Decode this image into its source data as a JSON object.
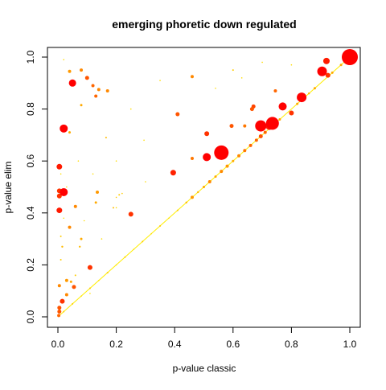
{
  "chart_data": {
    "type": "scatter",
    "title": "emerging phoretic down regulated",
    "xlabel": "p-value classic",
    "ylabel": "p-value elim",
    "xlim": [
      0,
      1
    ],
    "ylim": [
      0,
      1
    ],
    "xticks": [
      "0.0",
      "0.2",
      "0.4",
      "0.6",
      "0.8",
      "1.0"
    ],
    "yticks": [
      "0.0",
      "0.2",
      "0.4",
      "0.6",
      "0.8",
      "1.0"
    ],
    "grid": false,
    "legend": "none",
    "colors": {
      "high": "#ff0000",
      "mid": "#ff6600",
      "low": "#ffd700",
      "faint": "#ffee00"
    },
    "points": [
      {
        "x": 1.0,
        "y": 1.0,
        "r": 10,
        "c": "#ff0000"
      },
      {
        "x": 0.92,
        "y": 0.985,
        "r": 4,
        "c": "#ff1a00"
      },
      {
        "x": 0.905,
        "y": 0.945,
        "r": 6,
        "c": "#ff0000"
      },
      {
        "x": 0.925,
        "y": 0.93,
        "r": 3,
        "c": "#ff3300"
      },
      {
        "x": 0.835,
        "y": 0.845,
        "r": 6,
        "c": "#ff0000"
      },
      {
        "x": 0.8,
        "y": 0.785,
        "r": 3,
        "c": "#ff3300"
      },
      {
        "x": 0.77,
        "y": 0.81,
        "r": 5,
        "c": "#ff0000"
      },
      {
        "x": 0.745,
        "y": 0.87,
        "r": 2,
        "c": "#ff6600"
      },
      {
        "x": 0.735,
        "y": 0.745,
        "r": 8,
        "c": "#ff0000"
      },
      {
        "x": 0.725,
        "y": 0.735,
        "r": 5,
        "c": "#ff1a00"
      },
      {
        "x": 0.695,
        "y": 0.735,
        "r": 7,
        "c": "#ff0000"
      },
      {
        "x": 0.67,
        "y": 0.81,
        "r": 2.5,
        "c": "#ff4400"
      },
      {
        "x": 0.665,
        "y": 0.8,
        "r": 2.5,
        "c": "#ff5500"
      },
      {
        "x": 0.64,
        "y": 0.735,
        "r": 2,
        "c": "#ff7700"
      },
      {
        "x": 0.6,
        "y": 0.95,
        "r": 1,
        "c": "#ffcc00"
      },
      {
        "x": 0.63,
        "y": 0.92,
        "r": 0.8,
        "c": "#ffdd00"
      },
      {
        "x": 0.56,
        "y": 0.632,
        "r": 9,
        "c": "#ff0000"
      },
      {
        "x": 0.51,
        "y": 0.615,
        "r": 5,
        "c": "#ff0000"
      },
      {
        "x": 0.51,
        "y": 0.705,
        "r": 3,
        "c": "#ff3300"
      },
      {
        "x": 0.595,
        "y": 0.735,
        "r": 2.5,
        "c": "#ff5500"
      },
      {
        "x": 0.46,
        "y": 0.925,
        "r": 2,
        "c": "#ff8800"
      },
      {
        "x": 0.54,
        "y": 0.88,
        "r": 0.8,
        "c": "#ffdd00"
      },
      {
        "x": 0.46,
        "y": 0.61,
        "r": 2,
        "c": "#ff7700"
      },
      {
        "x": 0.41,
        "y": 0.78,
        "r": 2.5,
        "c": "#ff5500"
      },
      {
        "x": 0.395,
        "y": 0.555,
        "r": 3.5,
        "c": "#ff2200"
      },
      {
        "x": 0.35,
        "y": 0.91,
        "r": 0.8,
        "c": "#ffdd00"
      },
      {
        "x": 0.295,
        "y": 0.68,
        "r": 0.8,
        "c": "#ffdd00"
      },
      {
        "x": 0.25,
        "y": 0.395,
        "r": 3,
        "c": "#ff3300"
      },
      {
        "x": 0.2,
        "y": 0.6,
        "r": 0.8,
        "c": "#ffdd00"
      },
      {
        "x": 0.21,
        "y": 0.47,
        "r": 1,
        "c": "#ffcc00"
      },
      {
        "x": 0.22,
        "y": 0.475,
        "r": 0.8,
        "c": "#ffcc00"
      },
      {
        "x": 0.2,
        "y": 0.46,
        "r": 0.8,
        "c": "#ffcc00"
      },
      {
        "x": 0.19,
        "y": 0.42,
        "r": 1,
        "c": "#ffbb00"
      },
      {
        "x": 0.17,
        "y": 0.87,
        "r": 2,
        "c": "#ff8800"
      },
      {
        "x": 0.165,
        "y": 0.69,
        "r": 1,
        "c": "#ffbb00"
      },
      {
        "x": 0.14,
        "y": 0.875,
        "r": 2,
        "c": "#ff8800"
      },
      {
        "x": 0.13,
        "y": 0.85,
        "r": 2,
        "c": "#ff6600"
      },
      {
        "x": 0.12,
        "y": 0.89,
        "r": 2,
        "c": "#ff6600"
      },
      {
        "x": 0.135,
        "y": 0.48,
        "r": 2,
        "c": "#ff9900"
      },
      {
        "x": 0.13,
        "y": 0.44,
        "r": 1.5,
        "c": "#ffaa00"
      },
      {
        "x": 0.11,
        "y": 0.19,
        "r": 3,
        "c": "#ff3300"
      },
      {
        "x": 0.1,
        "y": 0.92,
        "r": 2.5,
        "c": "#ff5500"
      },
      {
        "x": 0.08,
        "y": 0.95,
        "r": 2,
        "c": "#ff8800"
      },
      {
        "x": 0.08,
        "y": 0.815,
        "r": 1.5,
        "c": "#ffaa00"
      },
      {
        "x": 0.08,
        "y": 0.3,
        "r": 1.5,
        "c": "#ffaa00"
      },
      {
        "x": 0.075,
        "y": 0.27,
        "r": 1.2,
        "c": "#ffbb00"
      },
      {
        "x": 0.06,
        "y": 0.425,
        "r": 2,
        "c": "#ff8800"
      },
      {
        "x": 0.05,
        "y": 0.9,
        "r": 4.5,
        "c": "#ff0000"
      },
      {
        "x": 0.055,
        "y": 0.115,
        "r": 2.5,
        "c": "#ff5500"
      },
      {
        "x": 0.045,
        "y": 0.135,
        "r": 1.5,
        "c": "#ffaa00"
      },
      {
        "x": 0.04,
        "y": 0.945,
        "r": 2,
        "c": "#ff9900"
      },
      {
        "x": 0.04,
        "y": 0.71,
        "r": 1.5,
        "c": "#ffaa00"
      },
      {
        "x": 0.04,
        "y": 0.345,
        "r": 2,
        "c": "#ff8800"
      },
      {
        "x": 0.03,
        "y": 0.14,
        "r": 2,
        "c": "#ff9900"
      },
      {
        "x": 0.03,
        "y": 0.085,
        "r": 2,
        "c": "#ff8800"
      },
      {
        "x": 0.02,
        "y": 0.725,
        "r": 5,
        "c": "#ff0000"
      },
      {
        "x": 0.02,
        "y": 0.48,
        "r": 5,
        "c": "#ff0000"
      },
      {
        "x": 0.015,
        "y": 0.06,
        "r": 3,
        "c": "#ff3300"
      },
      {
        "x": 0.015,
        "y": 0.27,
        "r": 1.2,
        "c": "#ffbb00"
      },
      {
        "x": 0.005,
        "y": 0.578,
        "r": 3.5,
        "c": "#ff1a00"
      },
      {
        "x": 0.005,
        "y": 0.485,
        "r": 3,
        "c": "#ff3300"
      },
      {
        "x": 0.005,
        "y": 0.465,
        "r": 3,
        "c": "#ff3300"
      },
      {
        "x": 0.005,
        "y": 0.41,
        "r": 3.5,
        "c": "#ff1a00"
      },
      {
        "x": 0.005,
        "y": 0.12,
        "r": 2,
        "c": "#ff8800"
      },
      {
        "x": 0.005,
        "y": 0.035,
        "r": 2.5,
        "c": "#ff5500"
      },
      {
        "x": 0.005,
        "y": 0.02,
        "r": 2.5,
        "c": "#ff5500"
      },
      {
        "x": 0.003,
        "y": 0.005,
        "r": 2,
        "c": "#ff6600"
      },
      {
        "x": 0.01,
        "y": 0.22,
        "r": 1,
        "c": "#ffcc00"
      },
      {
        "x": 0.01,
        "y": 0.31,
        "r": 1,
        "c": "#ffcc00"
      },
      {
        "x": 0.02,
        "y": 0.38,
        "r": 0.8,
        "c": "#ffdd00"
      },
      {
        "x": 0.01,
        "y": 0.55,
        "r": 0.8,
        "c": "#ffdd00"
      },
      {
        "x": 0.06,
        "y": 0.16,
        "r": 1,
        "c": "#ffcc00"
      },
      {
        "x": 0.09,
        "y": 0.37,
        "r": 0.8,
        "c": "#ffdd00"
      },
      {
        "x": 0.12,
        "y": 0.55,
        "r": 0.8,
        "c": "#ffdd00"
      },
      {
        "x": 0.07,
        "y": 0.6,
        "r": 0.8,
        "c": "#ffdd00"
      },
      {
        "x": 0.2,
        "y": 0.42,
        "r": 0.8,
        "c": "#ffdd00"
      },
      {
        "x": 0.3,
        "y": 0.52,
        "r": 0.8,
        "c": "#ffdd00"
      },
      {
        "x": 0.15,
        "y": 0.3,
        "r": 0.8,
        "c": "#ffdd00"
      },
      {
        "x": 0.11,
        "y": 0.09,
        "r": 0.8,
        "c": "#ffdd00"
      },
      {
        "x": 0.03,
        "y": 0.5,
        "r": 0.8,
        "c": "#ffdd00"
      },
      {
        "x": 0.25,
        "y": 0.8,
        "r": 0.8,
        "c": "#ffdd00"
      },
      {
        "x": 0.7,
        "y": 0.98,
        "r": 0.8,
        "c": "#ffdd00"
      },
      {
        "x": 0.8,
        "y": 0.97,
        "r": 0.8,
        "c": "#ffdd00"
      },
      {
        "x": 0.02,
        "y": 0.99,
        "r": 0.8,
        "c": "#ffdd00"
      }
    ],
    "diagonal": [
      {
        "x": 0.02,
        "r": 1,
        "c": "#ffcc00"
      },
      {
        "x": 0.05,
        "r": 1,
        "c": "#ffcc00"
      },
      {
        "x": 0.08,
        "r": 0.8,
        "c": "#ffdd00"
      },
      {
        "x": 0.11,
        "r": 1,
        "c": "#ffcc00"
      },
      {
        "x": 0.14,
        "r": 0.8,
        "c": "#ffdd00"
      },
      {
        "x": 0.17,
        "r": 1,
        "c": "#ffcc00"
      },
      {
        "x": 0.2,
        "r": 0.8,
        "c": "#ffdd00"
      },
      {
        "x": 0.23,
        "r": 1,
        "c": "#ffcc00"
      },
      {
        "x": 0.26,
        "r": 0.8,
        "c": "#ffdd00"
      },
      {
        "x": 0.29,
        "r": 1,
        "c": "#ffcc00"
      },
      {
        "x": 0.32,
        "r": 0.8,
        "c": "#ffdd00"
      },
      {
        "x": 0.35,
        "r": 1,
        "c": "#ffcc00"
      },
      {
        "x": 0.38,
        "r": 0.8,
        "c": "#ffdd00"
      },
      {
        "x": 0.41,
        "r": 1,
        "c": "#ffcc00"
      },
      {
        "x": 0.44,
        "r": 1.2,
        "c": "#ffbb00"
      },
      {
        "x": 0.46,
        "r": 2,
        "c": "#ff9900"
      },
      {
        "x": 0.48,
        "r": 1.2,
        "c": "#ffbb00"
      },
      {
        "x": 0.5,
        "r": 1.5,
        "c": "#ffaa00"
      },
      {
        "x": 0.52,
        "r": 2,
        "c": "#ff8800"
      },
      {
        "x": 0.54,
        "r": 1.5,
        "c": "#ffaa00"
      },
      {
        "x": 0.56,
        "r": 2,
        "c": "#ff8800"
      },
      {
        "x": 0.58,
        "r": 2,
        "c": "#ff9900"
      },
      {
        "x": 0.6,
        "r": 1.5,
        "c": "#ffaa00"
      },
      {
        "x": 0.62,
        "r": 2,
        "c": "#ff8800"
      },
      {
        "x": 0.64,
        "r": 2,
        "c": "#ff7700"
      },
      {
        "x": 0.66,
        "r": 2,
        "c": "#ff6600"
      },
      {
        "x": 0.68,
        "r": 2,
        "c": "#ff6600"
      },
      {
        "x": 0.695,
        "r": 2.5,
        "c": "#ff5500"
      },
      {
        "x": 0.71,
        "r": 2,
        "c": "#ff6600"
      },
      {
        "x": 0.76,
        "r": 1.5,
        "c": "#ffaa00"
      },
      {
        "x": 0.82,
        "r": 1.5,
        "c": "#ffaa00"
      },
      {
        "x": 0.86,
        "r": 1.2,
        "c": "#ffbb00"
      },
      {
        "x": 0.88,
        "r": 1.5,
        "c": "#ffaa00"
      },
      {
        "x": 0.94,
        "r": 1.5,
        "c": "#ffaa00"
      },
      {
        "x": 0.97,
        "r": 1.5,
        "c": "#ffaa00"
      }
    ]
  }
}
